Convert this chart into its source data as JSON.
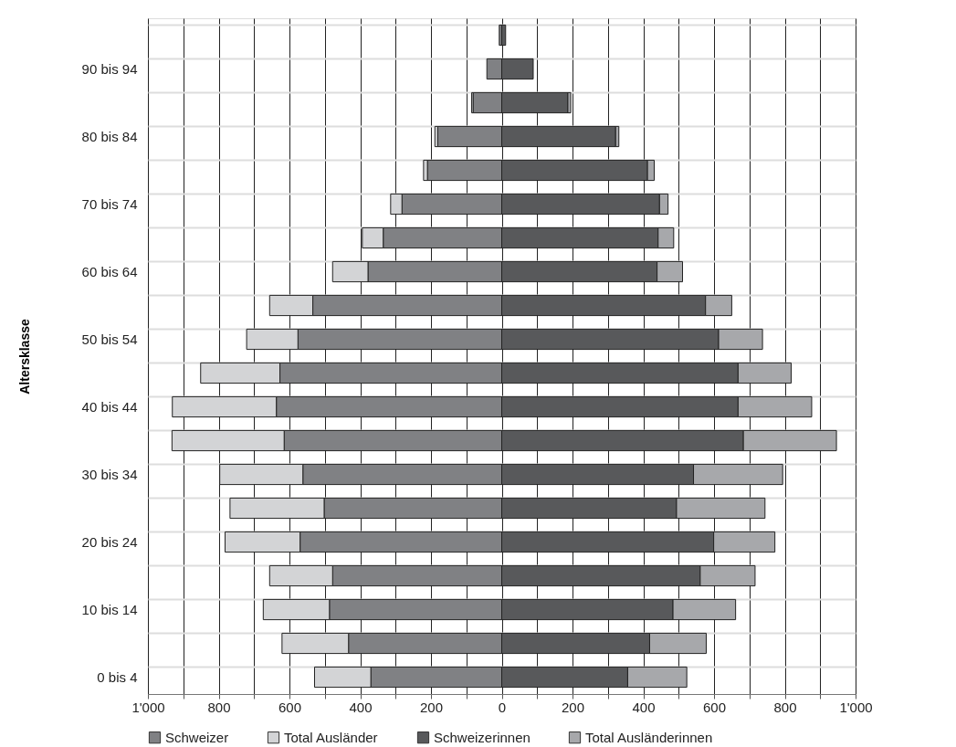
{
  "chart_data": {
    "type": "bar",
    "orientation": "horizontal",
    "stacked": true,
    "ylabel": "Altersklasse",
    "categories": [
      null,
      "90 bis 94",
      null,
      "80 bis 84",
      null,
      "70 bis 74",
      null,
      "60 bis 64",
      null,
      "50 bis 54",
      null,
      "40 bis 44",
      null,
      "30 bis 34",
      null,
      "20 bis 24",
      null,
      "10 bis 14",
      null,
      "0 bis 4"
    ],
    "series": [
      {
        "name": "Schweizer",
        "color": "#808184",
        "values": [
          -7,
          -42,
          -81,
          -181,
          -210,
          -282,
          -335,
          -378,
          -534,
          -576,
          -627,
          -637,
          -615,
          -562,
          -502,
          -570,
          -478,
          -487,
          -433,
          -370
        ]
      },
      {
        "name": "Total Ausländer",
        "color": "#d3d4d6",
        "values": [
          null,
          null,
          -4,
          -8,
          -11,
          -32,
          -59,
          -100,
          -122,
          -145,
          -224,
          -294,
          -317,
          -235,
          -266,
          -212,
          -178,
          -187,
          -188,
          -159
        ]
      },
      {
        "name": "Schweizerinnen",
        "color": "#58595b",
        "values": [
          11,
          89,
          187,
          322,
          412,
          446,
          442,
          439,
          576,
          613,
          668,
          668,
          683,
          542,
          494,
          599,
          561,
          484,
          418,
          356
        ]
      },
      {
        "name": "Total Ausländerinnen",
        "color": "#a7a8ab",
        "values": [
          null,
          null,
          8,
          9,
          19,
          24,
          44,
          72,
          74,
          124,
          150,
          208,
          263,
          252,
          250,
          173,
          155,
          177,
          160,
          167
        ]
      }
    ],
    "xlim": [
      -1000,
      1000
    ],
    "xticks": [
      {
        "value": -1000,
        "label": "1'000"
      },
      {
        "value": -900,
        "label": null
      },
      {
        "value": -800,
        "label": "800"
      },
      {
        "value": -700,
        "label": null
      },
      {
        "value": -600,
        "label": "600"
      },
      {
        "value": -500,
        "label": null
      },
      {
        "value": -400,
        "label": "400"
      },
      {
        "value": -300,
        "label": null
      },
      {
        "value": -200,
        "label": "200"
      },
      {
        "value": -100,
        "label": null
      },
      0,
      {
        "value": 100,
        "label": null
      },
      200,
      {
        "value": 300,
        "label": null
      },
      400,
      {
        "value": 500,
        "label": null
      },
      600,
      {
        "value": 700,
        "label": null
      },
      800,
      {
        "value": 900,
        "label": null
      },
      {
        "value": 1000,
        "label": "1'000"
      }
    ],
    "grid": true,
    "legend": "bottom"
  }
}
